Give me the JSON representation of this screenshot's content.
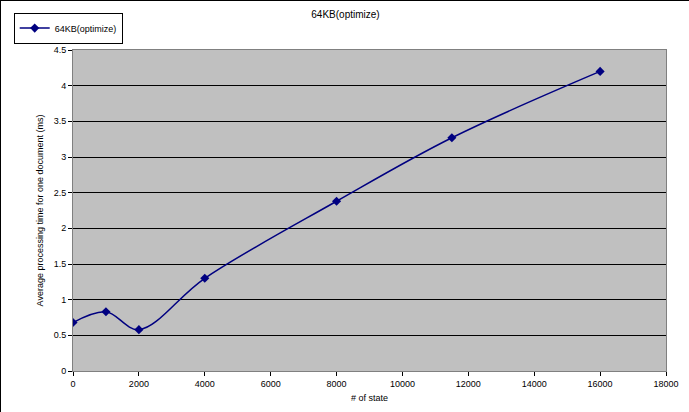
{
  "chart_data": {
    "type": "line",
    "title": "64KB(optimize)",
    "x_label": "# of state",
    "y_label": "Average processing time for one document (ms)",
    "series": [
      {
        "name": "64KB(optimize)",
        "color": "#000080",
        "marker": "diamond",
        "line_style": "smooth",
        "x": [
          0,
          1000,
          2000,
          4000,
          8000,
          11500,
          16000
        ],
        "values": [
          0.68,
          0.83,
          0.58,
          1.3,
          2.38,
          3.27,
          4.2
        ]
      }
    ],
    "xlim": [
      0,
      18000
    ],
    "xticks": [
      0,
      2000,
      4000,
      6000,
      8000,
      10000,
      12000,
      14000,
      16000,
      18000
    ],
    "ylim": [
      0,
      4.5
    ],
    "yticks": [
      0,
      0.5,
      1,
      1.5,
      2,
      2.5,
      3,
      3.5,
      4,
      4.5
    ],
    "grid": true,
    "legend": "top-left"
  }
}
